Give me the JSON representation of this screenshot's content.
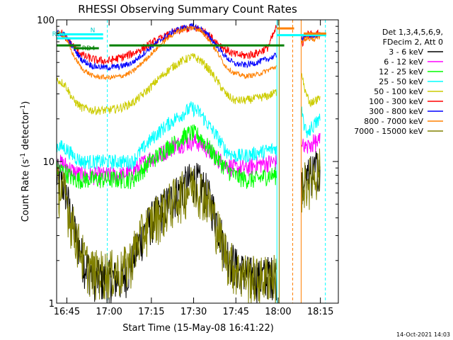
{
  "chart_data": {
    "type": "line",
    "title": "RHESSI Observing Summary Count Rates",
    "xlabel": "Start Time (15-May-08 16:41:22)",
    "ylabel_main": "Count Rate (s",
    "ylabel_sup": "-1",
    "ylabel_tail": " detector",
    "ylabel_end": ")",
    "yscale": "log",
    "ylim": [
      1,
      100
    ],
    "xlim": [
      0,
      100
    ],
    "x_unit": "minutes after 16:41:22",
    "y_ticks": [
      {
        "label": "1",
        "value": 1
      },
      {
        "label": "10",
        "value": 10
      },
      {
        "label": "100",
        "value": 100
      }
    ],
    "x_ticks": [
      {
        "label": "16:45",
        "value": 3.63
      },
      {
        "label": "17:00",
        "value": 18.63
      },
      {
        "label": "17:15",
        "value": 33.63
      },
      {
        "label": "17:30",
        "value": 48.63
      },
      {
        "label": "17:45",
        "value": 63.63
      },
      {
        "label": "18:00",
        "value": 78.63
      },
      {
        "label": "18:15",
        "value": 93.63
      }
    ],
    "legend_header": [
      "Det 1,3,4,5,6,9,",
      "FDecim 2, Att 0"
    ],
    "legend_position": "right",
    "series": [
      {
        "name": "3 - 6 keV",
        "color": "#000000",
        "points": [
          [
            0,
            8
          ],
          [
            3,
            6.5
          ],
          [
            5,
            4.2
          ],
          [
            8,
            2.5
          ],
          [
            10,
            1.9
          ],
          [
            14,
            1.5
          ],
          [
            19,
            1.5
          ],
          [
            23,
            1.5
          ],
          [
            26,
            1.8
          ],
          [
            29,
            2.6
          ],
          [
            32,
            3.5
          ],
          [
            35,
            4.2
          ],
          [
            38,
            4.8
          ],
          [
            41,
            5.5
          ],
          [
            44,
            6.5
          ],
          [
            47,
            7.2
          ],
          [
            49,
            7.5
          ],
          [
            51,
            7.0
          ],
          [
            53,
            6.2
          ],
          [
            55,
            5.0
          ],
          [
            57,
            3.8
          ],
          [
            59,
            2.8
          ],
          [
            61,
            2.2
          ],
          [
            64,
            1.8
          ],
          [
            68,
            1.6
          ],
          [
            72,
            1.5
          ],
          [
            75,
            1.6
          ],
          [
            78,
            1.6
          ]
        ]
      },
      {
        "name": "6 - 12 keV",
        "color": "#ff00ff",
        "points": [
          [
            0,
            10
          ],
          [
            3,
            9.5
          ],
          [
            6,
            8.5
          ],
          [
            9,
            8.0
          ],
          [
            13,
            8.0
          ],
          [
            18,
            8.0
          ],
          [
            23,
            8.0
          ],
          [
            27,
            8.5
          ],
          [
            30,
            9.5
          ],
          [
            33,
            10.5
          ],
          [
            36,
            11
          ],
          [
            39,
            12
          ],
          [
            42,
            13
          ],
          [
            45,
            13.5
          ],
          [
            48,
            14
          ],
          [
            51,
            13.5
          ],
          [
            54,
            12
          ],
          [
            57,
            10.5
          ],
          [
            60,
            9.5
          ],
          [
            63,
            9.0
          ],
          [
            67,
            9.0
          ],
          [
            71,
            9.5
          ],
          [
            75,
            9.8
          ],
          [
            78,
            10
          ]
        ]
      },
      {
        "name": "12 - 25 keV",
        "color": "#00ff00",
        "points": [
          [
            0,
            9
          ],
          [
            3,
            8.5
          ],
          [
            6,
            7.5
          ],
          [
            9,
            7.5
          ],
          [
            13,
            7.5
          ],
          [
            18,
            7.5
          ],
          [
            23,
            7.5
          ],
          [
            27,
            7.5
          ],
          [
            30,
            8.5
          ],
          [
            33,
            10
          ],
          [
            36,
            11
          ],
          [
            39,
            12.5
          ],
          [
            42,
            13.5
          ],
          [
            45,
            15
          ],
          [
            48,
            16
          ],
          [
            51,
            15
          ],
          [
            54,
            12.5
          ],
          [
            57,
            10.5
          ],
          [
            60,
            9
          ],
          [
            63,
            8
          ],
          [
            67,
            7.5
          ],
          [
            71,
            7.5
          ],
          [
            75,
            8
          ],
          [
            78,
            8
          ]
        ]
      },
      {
        "name": "25 - 50 keV",
        "color": "#00ffff",
        "points": [
          [
            0,
            13
          ],
          [
            3,
            12.5
          ],
          [
            6,
            11
          ],
          [
            9,
            10
          ],
          [
            13,
            10
          ],
          [
            18,
            10
          ],
          [
            23,
            10
          ],
          [
            27,
            10
          ],
          [
            30,
            12
          ],
          [
            33,
            14
          ],
          [
            36,
            16
          ],
          [
            39,
            18
          ],
          [
            42,
            20
          ],
          [
            45,
            22
          ],
          [
            48,
            24
          ],
          [
            51,
            22
          ],
          [
            54,
            18
          ],
          [
            57,
            15
          ],
          [
            60,
            12
          ],
          [
            63,
            11
          ],
          [
            67,
            11
          ],
          [
            71,
            11.5
          ],
          [
            75,
            12
          ],
          [
            78,
            12.5
          ]
        ]
      },
      {
        "name": "50 - 100 keV",
        "color": "#cccc00",
        "points": [
          [
            0,
            38
          ],
          [
            3,
            35
          ],
          [
            6,
            27
          ],
          [
            9,
            24
          ],
          [
            13,
            23
          ],
          [
            18,
            23
          ],
          [
            23,
            24
          ],
          [
            27,
            26
          ],
          [
            30,
            29
          ],
          [
            33,
            33
          ],
          [
            36,
            38
          ],
          [
            39,
            43
          ],
          [
            42,
            48
          ],
          [
            45,
            52
          ],
          [
            48,
            55
          ],
          [
            51,
            52
          ],
          [
            54,
            45
          ],
          [
            57,
            37
          ],
          [
            60,
            30
          ],
          [
            63,
            27
          ],
          [
            67,
            27
          ],
          [
            71,
            28
          ],
          [
            75,
            29
          ],
          [
            78,
            31
          ]
        ]
      },
      {
        "name": "100 - 300 keV",
        "color": "#ff0000",
        "points": [
          [
            0,
            84
          ],
          [
            2,
            80
          ],
          [
            4,
            72
          ],
          [
            7,
            62
          ],
          [
            10,
            55
          ],
          [
            14,
            52
          ],
          [
            18,
            51
          ],
          [
            21,
            53
          ],
          [
            24,
            55
          ],
          [
            27,
            58
          ],
          [
            30,
            62
          ],
          [
            33,
            67
          ],
          [
            36,
            72
          ],
          [
            39,
            77
          ],
          [
            42,
            82
          ],
          [
            45,
            86
          ],
          [
            48,
            88
          ],
          [
            51,
            86
          ],
          [
            54,
            78
          ],
          [
            57,
            69
          ],
          [
            60,
            62
          ],
          [
            63,
            57
          ],
          [
            67,
            56
          ],
          [
            71,
            58
          ],
          [
            75,
            64
          ],
          [
            78,
            88
          ]
        ]
      },
      {
        "name": "300 - 800 keV",
        "color": "#0000ff",
        "points": [
          [
            0,
            81
          ],
          [
            3,
            78
          ],
          [
            6,
            63
          ],
          [
            9,
            52
          ],
          [
            13,
            47
          ],
          [
            18,
            46
          ],
          [
            23,
            47
          ],
          [
            27,
            50
          ],
          [
            30,
            56
          ],
          [
            33,
            63
          ],
          [
            36,
            70
          ],
          [
            39,
            77
          ],
          [
            42,
            84
          ],
          [
            45,
            88
          ],
          [
            48,
            90
          ],
          [
            51,
            87
          ],
          [
            54,
            77
          ],
          [
            57,
            65
          ],
          [
            60,
            55
          ],
          [
            63,
            49
          ],
          [
            67,
            48
          ],
          [
            71,
            50
          ],
          [
            75,
            53
          ],
          [
            78,
            56
          ]
        ]
      },
      {
        "name": "800 - 7000 keV",
        "color": "#ff8000",
        "points": [
          [
            0,
            82
          ],
          [
            3,
            76
          ],
          [
            6,
            56
          ],
          [
            9,
            45
          ],
          [
            13,
            40
          ],
          [
            18,
            39
          ],
          [
            23,
            40
          ],
          [
            27,
            43
          ],
          [
            30,
            49
          ],
          [
            33,
            56
          ],
          [
            36,
            64
          ],
          [
            39,
            73
          ],
          [
            42,
            81
          ],
          [
            45,
            86
          ],
          [
            48,
            88
          ],
          [
            51,
            85
          ],
          [
            54,
            73
          ],
          [
            57,
            59
          ],
          [
            60,
            47
          ],
          [
            63,
            42
          ],
          [
            67,
            40
          ],
          [
            71,
            41
          ],
          [
            75,
            44
          ],
          [
            78,
            47
          ]
        ]
      },
      {
        "name": "7000 - 15000 keV",
        "color": "#808000",
        "points": [
          [
            0,
            7
          ],
          [
            3,
            6
          ],
          [
            5,
            4
          ],
          [
            8,
            2.6
          ],
          [
            10,
            2.0
          ],
          [
            13,
            1.7
          ],
          [
            19,
            1.7
          ],
          [
            23,
            1.7
          ],
          [
            26,
            2.0
          ],
          [
            29,
            2.8
          ],
          [
            32,
            3.5
          ],
          [
            35,
            4.1
          ],
          [
            38,
            4.6
          ],
          [
            41,
            5.3
          ],
          [
            44,
            6.0
          ],
          [
            47,
            6.6
          ],
          [
            49,
            6.9
          ],
          [
            51,
            6.5
          ],
          [
            53,
            5.8
          ],
          [
            55,
            4.6
          ],
          [
            57,
            3.5
          ],
          [
            59,
            2.6
          ],
          [
            61,
            2.1
          ],
          [
            64,
            1.7
          ],
          [
            68,
            1.6
          ],
          [
            72,
            1.5
          ],
          [
            75,
            1.6
          ],
          [
            78,
            1.6
          ]
        ]
      }
    ],
    "post_gap_series": [
      {
        "name": "3 - 6 keV",
        "points": [
          [
            87,
            7
          ],
          [
            88.5,
            7.5
          ],
          [
            91,
            8.5
          ],
          [
            93.5,
            9.5
          ]
        ]
      },
      {
        "name": "6 - 12 keV",
        "points": [
          [
            87,
            13
          ],
          [
            88.5,
            12.5
          ],
          [
            91,
            13.5
          ],
          [
            93.5,
            14
          ]
        ]
      },
      {
        "name": "25 - 50 keV",
        "points": [
          [
            87,
            22
          ],
          [
            88.5,
            16
          ],
          [
            90,
            17
          ],
          [
            93.5,
            20
          ]
        ]
      },
      {
        "name": "50 - 100 keV",
        "points": [
          [
            87,
            41
          ],
          [
            88.5,
            30
          ],
          [
            90,
            26
          ],
          [
            93.5,
            28
          ]
        ]
      },
      {
        "name": "100 - 300 keV",
        "points": [
          [
            87,
            68
          ],
          [
            88.5,
            78
          ],
          [
            91,
            79
          ],
          [
            93.5,
            80
          ]
        ]
      },
      {
        "name": "300 - 800 keV",
        "points": [
          [
            87,
            73
          ],
          [
            88.5,
            77
          ],
          [
            91,
            76
          ],
          [
            93.5,
            78
          ]
        ]
      },
      {
        "name": "800 - 7000 keV",
        "points": [
          [
            87,
            71
          ],
          [
            88.5,
            74
          ],
          [
            91,
            73
          ],
          [
            93.5,
            74
          ]
        ]
      },
      {
        "name": "7000 - 15000 keV",
        "points": [
          [
            87,
            7
          ],
          [
            88.5,
            7.2
          ],
          [
            91,
            8
          ],
          [
            93.5,
            9
          ]
        ]
      }
    ],
    "flags": [
      {
        "label": "N",
        "color": "#00ffff",
        "y": 79,
        "x_start": 0,
        "x_end": 16.5
      },
      {
        "label": "RD0",
        "color": "#00ffff",
        "y": 74,
        "x_start": 0,
        "x_end": 16.5
      },
      {
        "label": "RD4",
        "color": "#008000",
        "y": 63,
        "x_start": 6,
        "x_end": 15
      },
      {
        "label": "",
        "color": "#008000",
        "y": 66,
        "x_start": 0,
        "x_end": 8.6
      },
      {
        "label": "",
        "color": "#008000",
        "y": 66,
        "x_start": 18.7,
        "x_end": 80.8
      },
      {
        "label": "",
        "color": "#ff8000",
        "y": 87,
        "x_start": 78.2,
        "x_end": 84.3
      },
      {
        "label": "",
        "color": "#00ffff",
        "y": 78,
        "x_start": 78.2,
        "x_end": 95.7
      },
      {
        "label": "",
        "color": "#ff8000",
        "y": 80,
        "x_start": 87.7,
        "x_end": 95.7
      }
    ],
    "vlines": [
      {
        "x": 18.0,
        "color": "#00ffff",
        "dashed": true
      },
      {
        "x": 78.2,
        "color": "#00ffff",
        "dashed": false
      },
      {
        "x": 79.0,
        "color": "#808000",
        "dashed": false
      },
      {
        "x": 83.8,
        "color": "#ff8000",
        "dashed": true
      },
      {
        "x": 86.8,
        "color": "#ff8000",
        "dashed": false
      },
      {
        "x": 95.4,
        "color": "#00ffff",
        "dashed": true
      }
    ],
    "timestamp": "14-Oct-2021 14:03"
  }
}
